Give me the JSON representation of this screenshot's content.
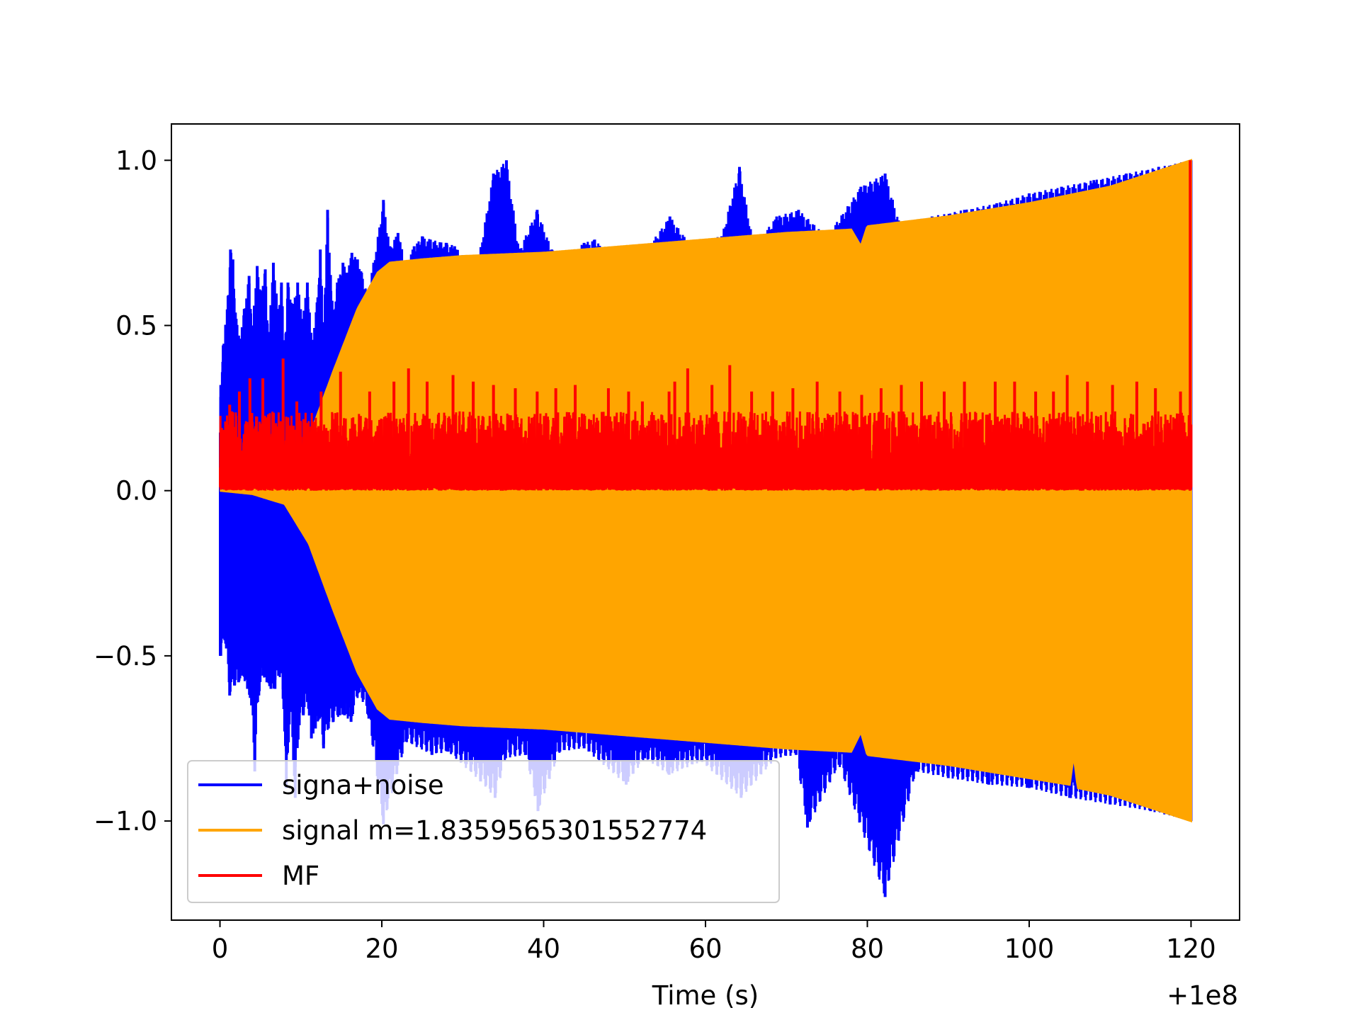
{
  "chart_data": {
    "type": "line",
    "title": "",
    "xlabel": "Time (s)",
    "ylabel": "",
    "x_offset_label": "+1e8",
    "xlim": [
      -6,
      126
    ],
    "ylim": [
      -1.3,
      1.11
    ],
    "x_ticks": [
      0,
      20,
      40,
      60,
      80,
      100,
      120
    ],
    "x_tick_labels": [
      "0",
      "20",
      "40",
      "60",
      "80",
      "100",
      "120"
    ],
    "y_ticks": [
      1.0,
      0.5,
      0.0,
      -0.5,
      -1.0
    ],
    "y_tick_labels": [
      "1.0",
      "0.5",
      "0.0",
      "−0.5",
      "−1.0"
    ],
    "grid": false,
    "legend_position": "lower-left",
    "series": [
      {
        "name": "signa+noise",
        "color": "#0000ff",
        "x_range": [
          0,
          120
        ],
        "peaks_positive": [
          [
            0.1,
            0.32
          ],
          [
            0.4,
            0.44
          ],
          [
            1,
            0.59
          ],
          [
            1.3,
            0.73
          ],
          [
            1.6,
            0.7
          ],
          [
            2,
            0.52
          ],
          [
            2.5,
            0.46
          ],
          [
            3,
            0.55
          ],
          [
            3.6,
            0.65
          ],
          [
            4,
            0.5
          ],
          [
            4.6,
            0.68
          ],
          [
            5,
            0.6
          ],
          [
            5.6,
            0.67
          ],
          [
            6,
            0.47
          ],
          [
            6.6,
            0.69
          ],
          [
            7.2,
            0.55
          ],
          [
            7.6,
            0.63
          ],
          [
            8,
            0.44
          ],
          [
            8.4,
            0.63
          ],
          [
            9,
            0.56
          ],
          [
            9.6,
            0.63
          ],
          [
            10.2,
            0.52
          ],
          [
            10.8,
            0.63
          ],
          [
            11.4,
            0.45
          ],
          [
            12,
            0.57
          ],
          [
            12.4,
            0.73
          ],
          [
            12.8,
            0.51
          ],
          [
            13.3,
            0.85
          ],
          [
            14,
            0.53
          ],
          [
            14.5,
            0.63
          ],
          [
            15.2,
            0.69
          ],
          [
            15.7,
            0.66
          ],
          [
            16.3,
            0.72
          ],
          [
            17,
            0.7
          ],
          [
            17.5,
            0.66
          ],
          [
            18.2,
            0.6
          ],
          [
            19,
            0.69
          ],
          [
            20.2,
            0.88
          ],
          [
            21,
            0.74
          ],
          [
            22,
            0.78
          ],
          [
            23,
            0.69
          ],
          [
            24,
            0.74
          ],
          [
            25,
            0.77
          ],
          [
            26,
            0.76
          ],
          [
            28,
            0.75
          ],
          [
            29,
            0.74
          ],
          [
            30.5,
            0.7
          ],
          [
            32,
            0.71
          ],
          [
            33.8,
            0.96
          ],
          [
            35.4,
            1.0
          ],
          [
            37,
            0.73
          ],
          [
            39.2,
            0.85
          ],
          [
            41,
            0.73
          ],
          [
            43,
            0.71
          ],
          [
            45,
            0.75
          ],
          [
            46.3,
            0.76
          ],
          [
            48,
            0.72
          ],
          [
            51,
            0.72
          ],
          [
            53,
            0.74
          ],
          [
            55.6,
            0.83
          ],
          [
            58,
            0.75
          ],
          [
            62,
            0.77
          ],
          [
            64.2,
            0.98
          ],
          [
            66,
            0.74
          ],
          [
            68.8,
            0.83
          ],
          [
            71.5,
            0.85
          ],
          [
            75,
            0.77
          ],
          [
            79.2,
            0.92
          ],
          [
            82.2,
            0.96
          ],
          [
            84,
            0.81
          ],
          [
            88,
            0.83
          ],
          [
            92,
            0.85
          ],
          [
            96,
            0.87
          ],
          [
            100,
            0.9
          ],
          [
            104,
            0.92
          ],
          [
            108,
            0.94
          ],
          [
            112,
            0.96
          ],
          [
            116,
            0.98
          ],
          [
            120,
            1.0
          ]
        ],
        "peaks_negative": [
          [
            0.1,
            -0.5
          ],
          [
            0.6,
            -0.45
          ],
          [
            1.2,
            -0.62
          ],
          [
            1.8,
            -0.59
          ],
          [
            2.3,
            -0.58
          ],
          [
            2.8,
            -0.56
          ],
          [
            3.4,
            -0.6
          ],
          [
            3.9,
            -0.65
          ],
          [
            4.3,
            -0.85
          ],
          [
            4.8,
            -0.62
          ],
          [
            5.3,
            -0.56
          ],
          [
            5.8,
            -0.58
          ],
          [
            6.3,
            -0.6
          ],
          [
            6.8,
            -0.6
          ],
          [
            7.3,
            -0.56
          ],
          [
            7.8,
            -0.63
          ],
          [
            8.2,
            -0.9
          ],
          [
            8.7,
            -0.67
          ],
          [
            9.3,
            -0.93
          ],
          [
            9.8,
            -0.71
          ],
          [
            10.3,
            -0.68
          ],
          [
            10.8,
            -0.64
          ],
          [
            11.3,
            -0.75
          ],
          [
            11.8,
            -0.72
          ],
          [
            12.3,
            -0.69
          ],
          [
            12.8,
            -0.78
          ],
          [
            13.4,
            -0.72
          ],
          [
            14,
            -0.7
          ],
          [
            14.8,
            -0.68
          ],
          [
            15.4,
            -0.68
          ],
          [
            16.2,
            -0.7
          ],
          [
            17.2,
            -0.61
          ],
          [
            18.4,
            -0.69
          ],
          [
            20.2,
            -1.01
          ],
          [
            23,
            -0.76
          ],
          [
            26.2,
            -0.8
          ],
          [
            28.2,
            -0.79
          ],
          [
            32.2,
            -0.88
          ],
          [
            34,
            -0.93
          ],
          [
            35.3,
            -0.81
          ],
          [
            37.8,
            -0.8
          ],
          [
            39.3,
            -0.97
          ],
          [
            42,
            -0.79
          ],
          [
            45,
            -0.78
          ],
          [
            50.2,
            -0.89
          ],
          [
            52.5,
            -0.81
          ],
          [
            55.5,
            -0.86
          ],
          [
            59.5,
            -0.82
          ],
          [
            64.4,
            -0.93
          ],
          [
            68.7,
            -0.81
          ],
          [
            71.2,
            -0.8
          ],
          [
            72.6,
            -1.02
          ],
          [
            76.5,
            -0.83
          ],
          [
            82.2,
            -1.23
          ],
          [
            86,
            -0.85
          ],
          [
            90,
            -0.87
          ],
          [
            95,
            -0.89
          ],
          [
            100,
            -0.9
          ],
          [
            105,
            -0.93
          ],
          [
            110,
            -0.95
          ],
          [
            115,
            -0.97
          ],
          [
            120,
            -1.0
          ]
        ]
      },
      {
        "name": "signal m=1.8359565301552774",
        "color": "#ffa500",
        "envelope_upper": [
          [
            0,
            0.0
          ],
          [
            4,
            0.01
          ],
          [
            8,
            0.04
          ],
          [
            11,
            0.16
          ],
          [
            14,
            0.36
          ],
          [
            17,
            0.55
          ],
          [
            19.5,
            0.66
          ],
          [
            21,
            0.69
          ],
          [
            25,
            0.7
          ],
          [
            30,
            0.71
          ],
          [
            40,
            0.72
          ],
          [
            50,
            0.74
          ],
          [
            60,
            0.76
          ],
          [
            70,
            0.78
          ],
          [
            78,
            0.79
          ],
          [
            79.2,
            0.74
          ],
          [
            80,
            0.8
          ],
          [
            90,
            0.83
          ],
          [
            100,
            0.87
          ],
          [
            110,
            0.92
          ],
          [
            120,
            1.0
          ]
        ],
        "envelope_lower": [
          [
            0,
            0.0
          ],
          [
            4,
            -0.01
          ],
          [
            8,
            -0.04
          ],
          [
            11,
            -0.16
          ],
          [
            14,
            -0.36
          ],
          [
            17,
            -0.55
          ],
          [
            19.5,
            -0.66
          ],
          [
            21,
            -0.69
          ],
          [
            25,
            -0.7
          ],
          [
            30,
            -0.71
          ],
          [
            40,
            -0.72
          ],
          [
            50,
            -0.74
          ],
          [
            60,
            -0.76
          ],
          [
            70,
            -0.78
          ],
          [
            78,
            -0.79
          ],
          [
            79.2,
            -0.73
          ],
          [
            80,
            -0.8
          ],
          [
            90,
            -0.83
          ],
          [
            100,
            -0.87
          ],
          [
            105,
            -0.89
          ],
          [
            105.5,
            -0.8
          ],
          [
            106,
            -0.9
          ],
          [
            110,
            -0.92
          ],
          [
            120,
            -1.0
          ]
        ]
      },
      {
        "name": "MF",
        "color": "#ff0000",
        "x_range": [
          0,
          120
        ],
        "baseline": 0.01,
        "spikes": [
          [
            0.2,
            0.19
          ],
          [
            1.2,
            0.26
          ],
          [
            2.4,
            0.3
          ],
          [
            3.7,
            0.34
          ],
          [
            5.3,
            0.34
          ],
          [
            7.8,
            0.4
          ],
          [
            9.5,
            0.27
          ],
          [
            12.5,
            0.3
          ],
          [
            14.9,
            0.36
          ],
          [
            18.5,
            0.3
          ],
          [
            21.5,
            0.33
          ],
          [
            23.3,
            0.37
          ],
          [
            25.6,
            0.33
          ],
          [
            28.8,
            0.35
          ],
          [
            31.3,
            0.33
          ],
          [
            33.8,
            0.32
          ],
          [
            36.5,
            0.31
          ],
          [
            39.2,
            0.3
          ],
          [
            41.5,
            0.31
          ],
          [
            43.9,
            0.32
          ],
          [
            48,
            0.31
          ],
          [
            50.5,
            0.3
          ],
          [
            52.2,
            0.27
          ],
          [
            55.5,
            0.3
          ],
          [
            56.2,
            0.33
          ],
          [
            57.8,
            0.37
          ],
          [
            60.8,
            0.32
          ],
          [
            63,
            0.38
          ],
          [
            65.7,
            0.3
          ],
          [
            68.3,
            0.3
          ],
          [
            70.8,
            0.31
          ],
          [
            73.8,
            0.33
          ],
          [
            76.6,
            0.3
          ],
          [
            79.3,
            0.29
          ],
          [
            81.7,
            0.31
          ],
          [
            84.2,
            0.32
          ],
          [
            86.7,
            0.33
          ],
          [
            89.5,
            0.3
          ],
          [
            92,
            0.33
          ],
          [
            95.8,
            0.33
          ],
          [
            98.2,
            0.33
          ],
          [
            100.8,
            0.3
          ],
          [
            103,
            0.3
          ],
          [
            104.7,
            0.35
          ],
          [
            107.2,
            0.33
          ],
          [
            110.3,
            0.32
          ],
          [
            113.3,
            0.33
          ],
          [
            115.6,
            0.31
          ],
          [
            118.7,
            0.3
          ],
          [
            119.9,
            1.0
          ],
          [
            120,
            0.2
          ]
        ]
      }
    ]
  }
}
